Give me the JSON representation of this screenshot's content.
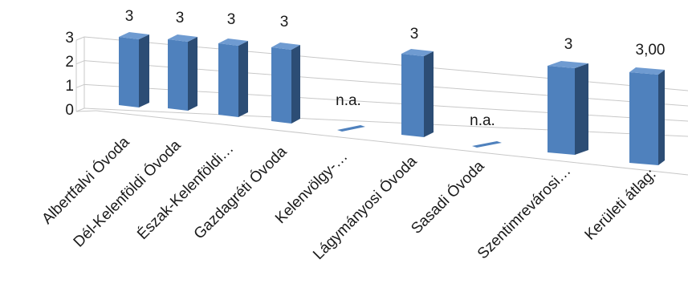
{
  "chart_data": {
    "type": "bar",
    "style": "3d-column",
    "categories": [
      "Albertfalvi Óvoda",
      "Dél-Kelenföldi Óvoda",
      "Észak-Kelenföldi…",
      "Gazdagréti Óvoda",
      "Kelenvölgy-…",
      "Lágymányosi Óvoda",
      "Sasadi Óvoda",
      "Szentimrevárosi…",
      "Kerületi átlag:"
    ],
    "values": [
      3,
      3,
      3,
      3,
      null,
      3,
      null,
      3,
      3.0
    ],
    "data_labels": [
      "3",
      "3",
      "3",
      "3",
      "n.a.",
      "3",
      "n.a.",
      "3",
      "3,00"
    ],
    "yticks": [
      "0",
      "1",
      "2",
      "3"
    ],
    "ylim": [
      0,
      3
    ],
    "grid": true,
    "legend": "none",
    "colors": {
      "bar_front": "#4f81bd",
      "bar_side": "#2c4d75",
      "bar_top": "#6f9bd1",
      "grid": "#c8c8c8"
    }
  }
}
